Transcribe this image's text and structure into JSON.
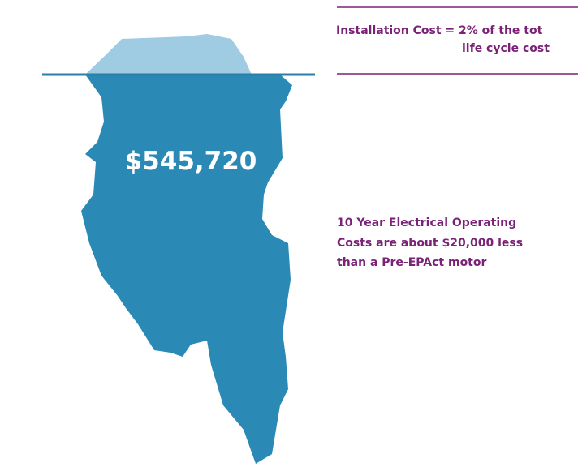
{
  "iceberg": {
    "amount": "$545,720"
  },
  "callouts": [
    {
      "lines": [
        "Installation Cost = 2% of the tot",
        "life cycle cost"
      ]
    },
    {
      "lines": [
        "10 Year Electrical Operating",
        "Costs are about $20,000 less",
        "than a Pre-EPAct motor"
      ]
    }
  ]
}
